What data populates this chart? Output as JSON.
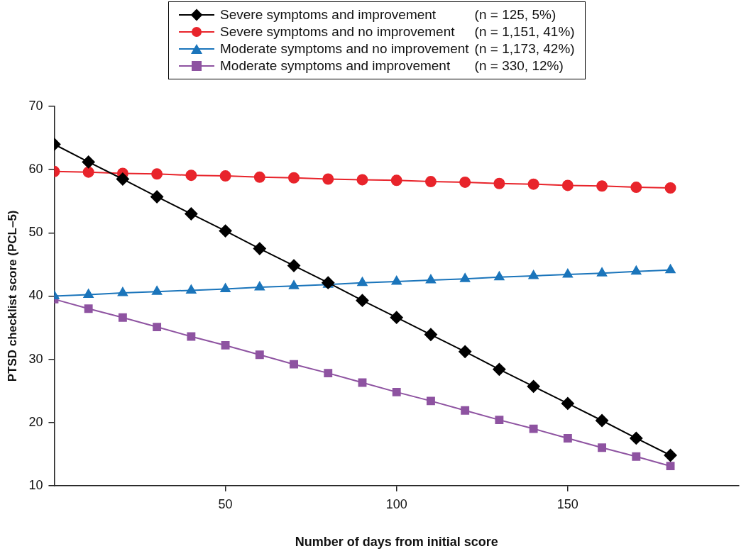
{
  "chart_data": {
    "type": "line",
    "xlabel": "Number of days from initial score",
    "ylabel": "PTSD checklist score (PCL–5)",
    "x": [
      0,
      10,
      20,
      30,
      40,
      50,
      60,
      70,
      80,
      90,
      100,
      110,
      120,
      130,
      140,
      150,
      160,
      170,
      180
    ],
    "xlim": [
      0,
      200
    ],
    "xticks": [
      50,
      100,
      150
    ],
    "ylim": [
      10,
      70
    ],
    "yticks": [
      10,
      20,
      30,
      40,
      50,
      60,
      70
    ],
    "grid": false,
    "legend": "top",
    "series": [
      {
        "name": "Severe symptoms and improvement (n = 125, 5%)",
        "color": "#000000",
        "marker": "diamond",
        "values": [
          64,
          61.2,
          58.5,
          55.7,
          53.0,
          50.3,
          47.5,
          44.8,
          42.1,
          39.3,
          36.6,
          33.9,
          31.2,
          28.4,
          25.7,
          23.0,
          20.3,
          17.5,
          14.8
        ]
      },
      {
        "name": "Severe symptoms and no improvement (n = 1,151, 41%)",
        "color": "#e8242b",
        "marker": "circle",
        "values": [
          59.7,
          59.6,
          59.4,
          59.3,
          59.1,
          59.0,
          58.8,
          58.7,
          58.5,
          58.4,
          58.3,
          58.1,
          58.0,
          57.8,
          57.7,
          57.5,
          57.4,
          57.2,
          57.1
        ]
      },
      {
        "name": "Moderate symptoms and no improvement (n = 1,173, 42%)",
        "color": "#1b75bb",
        "marker": "triangle",
        "values": [
          40.0,
          40.2,
          40.5,
          40.7,
          40.9,
          41.1,
          41.4,
          41.6,
          41.8,
          42.1,
          42.3,
          42.5,
          42.7,
          43.0,
          43.2,
          43.4,
          43.6,
          43.9,
          44.1
        ]
      },
      {
        "name": "Moderate symptoms and improvement (n = 330, 12%)",
        "color": "#8e53a1",
        "marker": "square",
        "values": [
          39.5,
          38.0,
          36.6,
          35.1,
          33.6,
          32.2,
          30.7,
          29.2,
          27.8,
          26.3,
          24.8,
          23.4,
          21.9,
          20.4,
          19.0,
          17.5,
          16.0,
          14.6,
          13.1
        ]
      }
    ]
  }
}
